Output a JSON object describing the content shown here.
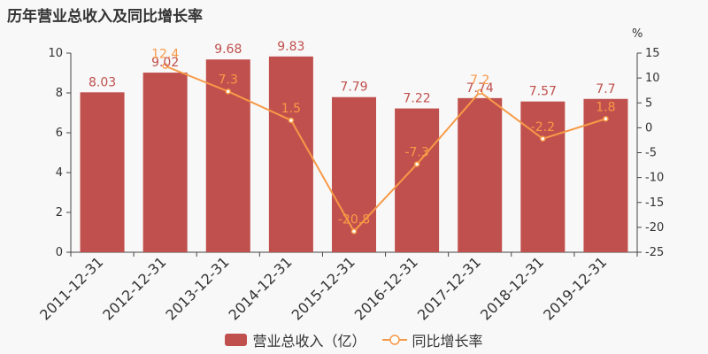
{
  "title": "历年营业总收入及同比增长率",
  "colors": {
    "bar": "#c0504d",
    "line": "#f79a47",
    "axis": "#444444",
    "bar_label": "#c0504d",
    "line_label": "#f79a47"
  },
  "legend": {
    "bar_label": "营业总收入（亿）",
    "line_label": "同比增长率"
  },
  "chart_data": {
    "type": "bar",
    "title": "历年营业总收入及同比增长率",
    "categories": [
      "2011-12-31",
      "2012-12-31",
      "2013-12-31",
      "2014-12-31",
      "2015-12-31",
      "2016-12-31",
      "2017-12-31",
      "2018-12-31",
      "2019-12-31"
    ],
    "series": [
      {
        "name": "营业总收入（亿）",
        "type": "bar",
        "axis": "left",
        "values": [
          8.03,
          9.02,
          9.68,
          9.83,
          7.79,
          7.22,
          7.74,
          7.57,
          7.7
        ],
        "labels": [
          "8.03",
          "9.02",
          "9.68",
          "9.83",
          "7.79",
          "7.22",
          "7.74",
          "7.57",
          "7.7"
        ]
      },
      {
        "name": "同比增长率",
        "type": "line",
        "axis": "right",
        "values": [
          null,
          12.4,
          7.3,
          1.5,
          -20.8,
          -7.3,
          7.2,
          -2.2,
          1.8
        ],
        "labels": [
          "",
          "12.4",
          "7.3",
          "1.5",
          "-20.8",
          "-7.3",
          "7.2",
          "-2.2",
          "1.8"
        ]
      }
    ],
    "y_left": {
      "min": 0,
      "max": 10,
      "ticks": [
        "0",
        "2",
        "4",
        "6",
        "8",
        "10"
      ]
    },
    "y_right": {
      "unit": "%",
      "min": -25,
      "max": 15,
      "ticks": [
        "-25",
        "-20",
        "-15",
        "-10",
        "-5",
        "0",
        "5",
        "10",
        "15"
      ]
    },
    "grid": false,
    "legend_position": "bottom"
  }
}
